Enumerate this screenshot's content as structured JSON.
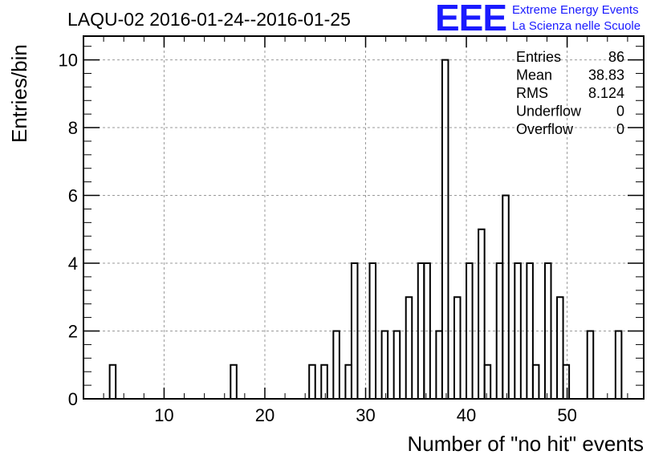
{
  "chart_data": {
    "type": "bar",
    "title": "LAQU-02 2016-01-24--2016-01-25",
    "xlabel": "Number of \"no hit\" events",
    "ylabel": "Entries/bin",
    "xlim": [
      2,
      57.6
    ],
    "ylim": [
      0,
      10.7
    ],
    "xticks": [
      10,
      20,
      30,
      40,
      50
    ],
    "yticks": [
      0,
      2,
      4,
      6,
      8,
      10
    ],
    "grid": true,
    "bin_width": 0.6,
    "bins": [
      {
        "x0": 4.6,
        "value": 1
      },
      {
        "x0": 16.6,
        "value": 1
      },
      {
        "x0": 24.4,
        "value": 1
      },
      {
        "x0": 25.6,
        "value": 1
      },
      {
        "x0": 26.8,
        "value": 2
      },
      {
        "x0": 28.0,
        "value": 1
      },
      {
        "x0": 28.6,
        "value": 4
      },
      {
        "x0": 30.4,
        "value": 4
      },
      {
        "x0": 31.6,
        "value": 2
      },
      {
        "x0": 32.8,
        "value": 2
      },
      {
        "x0": 34.0,
        "value": 3
      },
      {
        "x0": 35.2,
        "value": 4
      },
      {
        "x0": 35.8,
        "value": 4
      },
      {
        "x0": 37.0,
        "value": 2
      },
      {
        "x0": 37.6,
        "value": 10
      },
      {
        "x0": 38.8,
        "value": 3
      },
      {
        "x0": 40.0,
        "value": 4
      },
      {
        "x0": 41.2,
        "value": 5
      },
      {
        "x0": 41.8,
        "value": 1
      },
      {
        "x0": 43.0,
        "value": 4
      },
      {
        "x0": 43.6,
        "value": 6
      },
      {
        "x0": 44.8,
        "value": 4
      },
      {
        "x0": 46.0,
        "value": 4
      },
      {
        "x0": 46.6,
        "value": 1
      },
      {
        "x0": 47.8,
        "value": 4
      },
      {
        "x0": 49.0,
        "value": 3
      },
      {
        "x0": 49.6,
        "value": 1
      },
      {
        "x0": 52.0,
        "value": 2
      },
      {
        "x0": 54.8,
        "value": 2
      }
    ],
    "stats": [
      {
        "label": "Entries",
        "value": "86"
      },
      {
        "label": "Mean",
        "value": "38.83"
      },
      {
        "label": "RMS",
        "value": "8.124"
      },
      {
        "label": "Underflow",
        "value": "0"
      },
      {
        "label": "Overflow",
        "value": "0"
      }
    ],
    "stats_placement": "top-right"
  },
  "logo": {
    "text": "EEE",
    "line1": "Extreme Energy Events",
    "line2": "La Scienza nelle Scuole",
    "color": "#1a1aff"
  },
  "colors": {
    "line": "#000000",
    "grid": "#9a9a9a",
    "background": "#ffffff"
  }
}
